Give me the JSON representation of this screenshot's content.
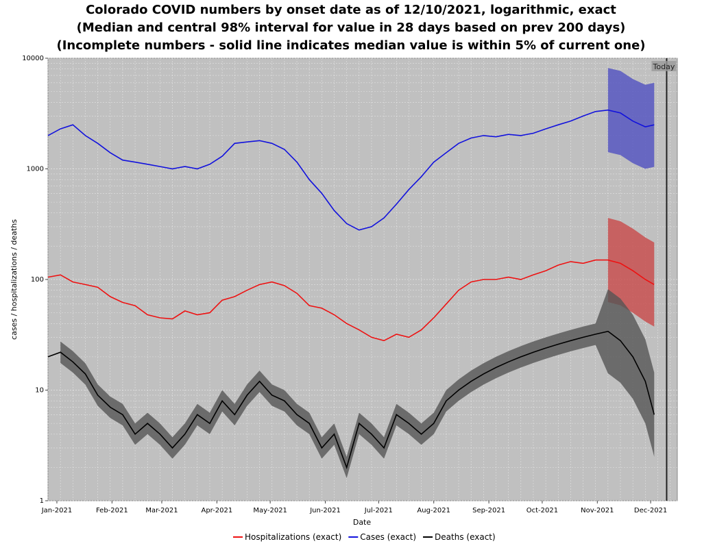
{
  "chart_data": {
    "type": "line",
    "title_lines": [
      "Colorado COVID numbers by onset date as of 12/10/2021, logarithmic, exact",
      "(Median and central 98% interval for value in 28 days based on prev 200 days)",
      "(Incomplete numbers - solid line indicates median value is within 5% of current one)"
    ],
    "xlabel": "Date",
    "ylabel": "cases / hospitalizations / deaths",
    "yscale": "log",
    "ylim": [
      1,
      10000
    ],
    "y_ticks": [
      1,
      10,
      100,
      1000,
      10000
    ],
    "y_tick_labels": [
      "1",
      "10",
      "100",
      "1000",
      "10000"
    ],
    "xlim": [
      "2020-12-27",
      "2021-12-16"
    ],
    "x_ticks": [
      "2021-01-01",
      "2021-02-01",
      "2021-03-01",
      "2021-04-01",
      "2021-05-01",
      "2021-06-01",
      "2021-07-01",
      "2021-08-01",
      "2021-09-01",
      "2021-10-01",
      "2021-11-01",
      "2021-12-01"
    ],
    "x_tick_labels": [
      "Jan-2021",
      "Feb-2021",
      "Mar-2021",
      "Apr-2021",
      "May-2021",
      "Jun-2021",
      "Jul-2021",
      "Aug-2021",
      "Sep-2021",
      "Oct-2021",
      "Nov-2021",
      "Dec-2021"
    ],
    "grid": true,
    "legend_position": "bottom",
    "today_label": "Today",
    "today_date": "2021-12-10",
    "series": [
      {
        "name": "Hospitalizations (exact)",
        "color": "#ee1111",
        "band_color": "#c84848",
        "x": [
          "2020-12-27",
          "2021-01-03",
          "2021-01-10",
          "2021-01-17",
          "2021-01-24",
          "2021-01-31",
          "2021-02-07",
          "2021-02-14",
          "2021-02-21",
          "2021-02-28",
          "2021-03-07",
          "2021-03-14",
          "2021-03-21",
          "2021-03-28",
          "2021-04-04",
          "2021-04-11",
          "2021-04-18",
          "2021-04-25",
          "2021-05-02",
          "2021-05-09",
          "2021-05-16",
          "2021-05-23",
          "2021-05-30",
          "2021-06-06",
          "2021-06-13",
          "2021-06-20",
          "2021-06-27",
          "2021-07-04",
          "2021-07-11",
          "2021-07-18",
          "2021-07-25",
          "2021-08-01",
          "2021-08-08",
          "2021-08-15",
          "2021-08-22",
          "2021-08-29",
          "2021-09-05",
          "2021-09-12",
          "2021-09-19",
          "2021-09-26",
          "2021-10-03",
          "2021-10-10",
          "2021-10-17",
          "2021-10-24",
          "2021-10-31",
          "2021-11-07",
          "2021-11-14",
          "2021-11-21",
          "2021-11-28",
          "2021-12-03"
        ],
        "values": [
          105,
          110,
          95,
          90,
          85,
          70,
          62,
          58,
          48,
          45,
          44,
          52,
          48,
          50,
          65,
          70,
          80,
          90,
          95,
          88,
          75,
          58,
          55,
          48,
          40,
          35,
          30,
          28,
          32,
          30,
          35,
          45,
          60,
          80,
          95,
          100,
          100,
          105,
          100,
          110,
          120,
          135,
          145,
          140,
          150,
          150,
          140,
          120,
          100,
          90
        ],
        "band_start": "2021-11-01"
      },
      {
        "name": "Cases (exact)",
        "color": "#1111dd",
        "band_color": "#5050c0",
        "x": [
          "2020-12-27",
          "2021-01-03",
          "2021-01-10",
          "2021-01-17",
          "2021-01-24",
          "2021-01-31",
          "2021-02-07",
          "2021-02-14",
          "2021-02-21",
          "2021-02-28",
          "2021-03-07",
          "2021-03-14",
          "2021-03-21",
          "2021-03-28",
          "2021-04-04",
          "2021-04-11",
          "2021-04-18",
          "2021-04-25",
          "2021-05-02",
          "2021-05-09",
          "2021-05-16",
          "2021-05-23",
          "2021-05-30",
          "2021-06-06",
          "2021-06-13",
          "2021-06-20",
          "2021-06-27",
          "2021-07-04",
          "2021-07-11",
          "2021-07-18",
          "2021-07-25",
          "2021-08-01",
          "2021-08-08",
          "2021-08-15",
          "2021-08-22",
          "2021-08-29",
          "2021-09-05",
          "2021-09-12",
          "2021-09-19",
          "2021-09-26",
          "2021-10-03",
          "2021-10-10",
          "2021-10-17",
          "2021-10-24",
          "2021-10-31",
          "2021-11-07",
          "2021-11-14",
          "2021-11-21",
          "2021-11-28",
          "2021-12-03"
        ],
        "values": [
          2000,
          2300,
          2500,
          2000,
          1700,
          1400,
          1200,
          1150,
          1100,
          1050,
          1000,
          1050,
          1000,
          1100,
          1300,
          1700,
          1750,
          1800,
          1700,
          1500,
          1150,
          800,
          600,
          420,
          320,
          280,
          300,
          360,
          480,
          650,
          850,
          1150,
          1400,
          1700,
          1900,
          2000,
          1950,
          2050,
          2000,
          2100,
          2300,
          2500,
          2700,
          3000,
          3300,
          3400,
          3200,
          2700,
          2400,
          2500
        ],
        "band_start": "2021-11-01"
      },
      {
        "name": "Deaths (exact)",
        "color": "#000000",
        "band_color": "#555555",
        "x": [
          "2020-12-27",
          "2021-01-03",
          "2021-01-10",
          "2021-01-17",
          "2021-01-24",
          "2021-01-31",
          "2021-02-07",
          "2021-02-14",
          "2021-02-21",
          "2021-02-28",
          "2021-03-07",
          "2021-03-14",
          "2021-03-21",
          "2021-03-28",
          "2021-04-04",
          "2021-04-11",
          "2021-04-18",
          "2021-04-25",
          "2021-05-02",
          "2021-05-09",
          "2021-05-16",
          "2021-05-23",
          "2021-05-30",
          "2021-06-06",
          "2021-06-13",
          "2021-06-20",
          "2021-06-27",
          "2021-07-04",
          "2021-07-11",
          "2021-07-18",
          "2021-07-25",
          "2021-08-01",
          "2021-08-08",
          "2021-08-15",
          "2021-08-22",
          "2021-08-29",
          "2021-09-05",
          "2021-09-12",
          "2021-09-19",
          "2021-09-26",
          "2021-10-03",
          "2021-10-10",
          "2021-10-17",
          "2021-10-24",
          "2021-10-31",
          "2021-11-07",
          "2021-11-14",
          "2021-11-21",
          "2021-11-28",
          "2021-12-03"
        ],
        "values": [
          20,
          22,
          18,
          14,
          9,
          7,
          6,
          4,
          5,
          4,
          3,
          4,
          6,
          5,
          8,
          6,
          9,
          12,
          9,
          8,
          6,
          5,
          3,
          4,
          2,
          5,
          4,
          3,
          6,
          5,
          4,
          5,
          8,
          10,
          12,
          14,
          16,
          18,
          20,
          22,
          24,
          26,
          28,
          30,
          32,
          34,
          28,
          20,
          12,
          6
        ],
        "band_start": "2021-01-01"
      }
    ]
  }
}
